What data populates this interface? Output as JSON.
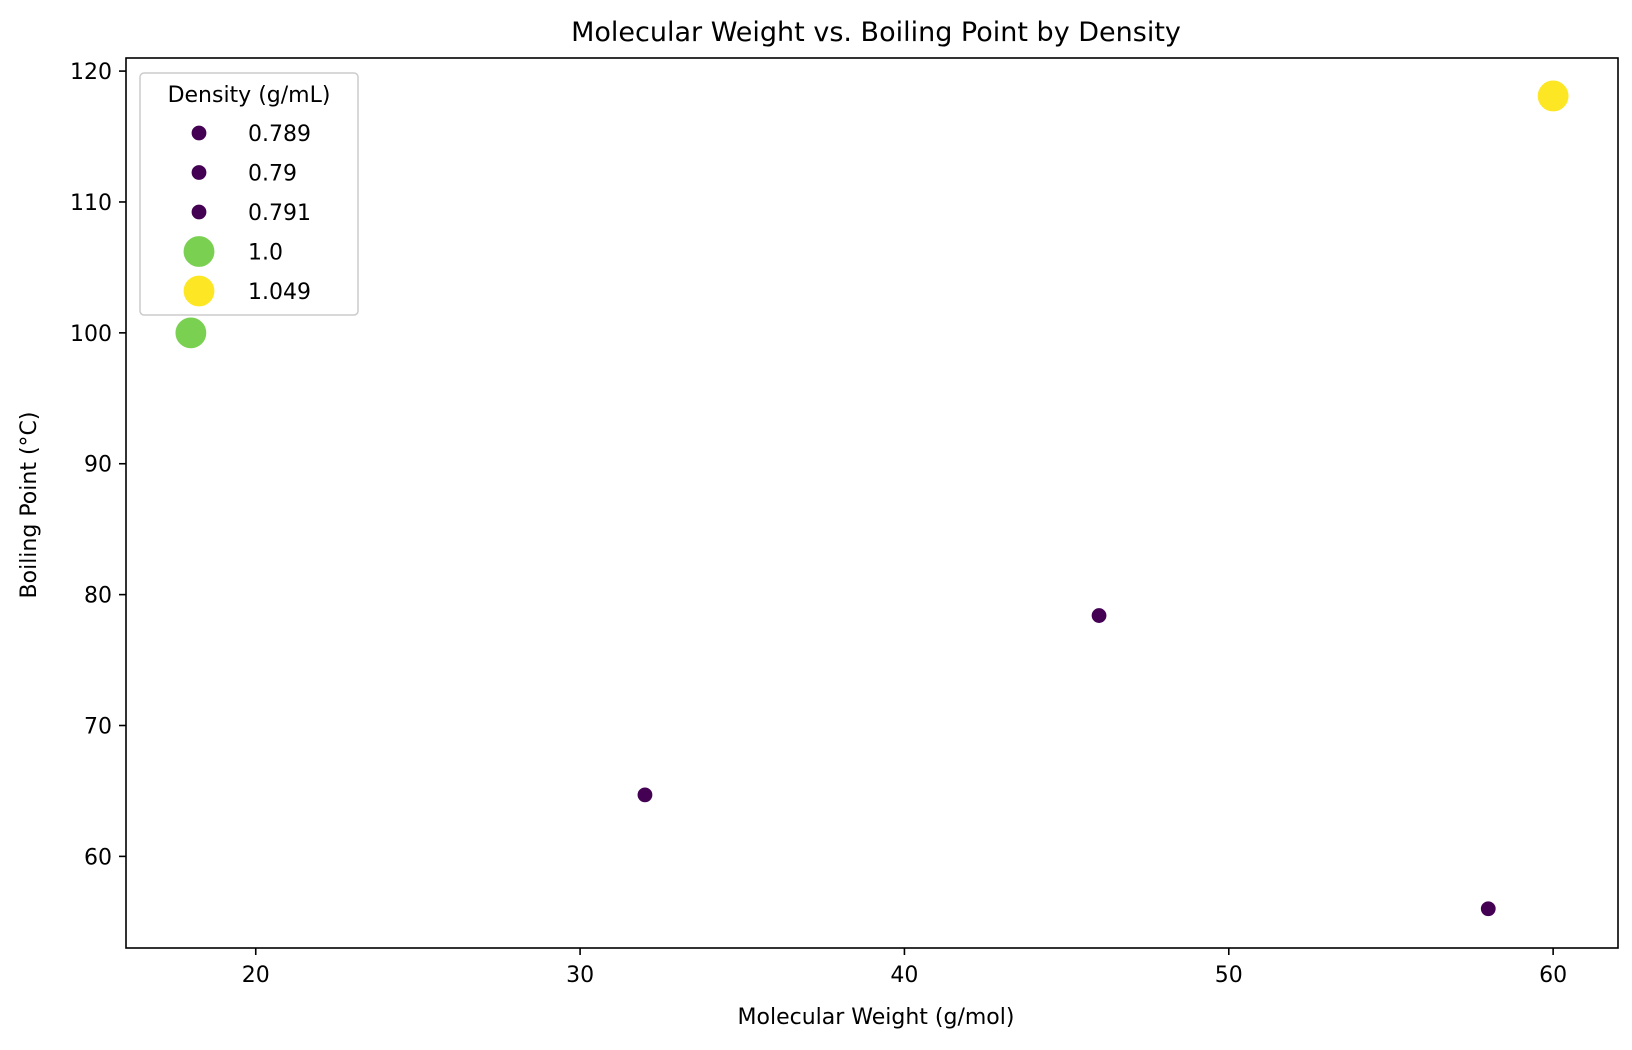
{
  "chart_data": {
    "type": "scatter",
    "title": "Molecular Weight vs. Boiling Point by Density",
    "xlabel": "Molecular Weight (g/mol)",
    "ylabel": "Boiling Point (°C)",
    "xlim": [
      16,
      62
    ],
    "ylim": [
      53,
      121
    ],
    "x_ticks": [
      20,
      30,
      40,
      50,
      60
    ],
    "y_ticks": [
      60,
      70,
      80,
      90,
      100,
      110,
      120
    ],
    "grid": false,
    "legend": {
      "title": "Density (g/mL)",
      "placement": "top-left",
      "entries": [
        {
          "label": "0.789",
          "color": "#440154",
          "size": "small"
        },
        {
          "label": "0.79",
          "color": "#440154",
          "size": "small"
        },
        {
          "label": "0.791",
          "color": "#440154",
          "size": "small"
        },
        {
          "label": "1.0",
          "color": "#7ad151",
          "size": "large"
        },
        {
          "label": "1.049",
          "color": "#fde725",
          "size": "large"
        }
      ]
    },
    "points": [
      {
        "x": 18.0,
        "y": 100.0,
        "density": 1.0,
        "color": "#7ad151",
        "size": "large"
      },
      {
        "x": 32.0,
        "y": 64.7,
        "density": 0.791,
        "color": "#440154",
        "size": "small"
      },
      {
        "x": 46.0,
        "y": 78.4,
        "density": 0.789,
        "color": "#440154",
        "size": "small"
      },
      {
        "x": 58.0,
        "y": 56.0,
        "density": 0.79,
        "color": "#440154",
        "size": "small"
      },
      {
        "x": 60.0,
        "y": 118.1,
        "density": 1.049,
        "color": "#fde725",
        "size": "large"
      }
    ]
  }
}
